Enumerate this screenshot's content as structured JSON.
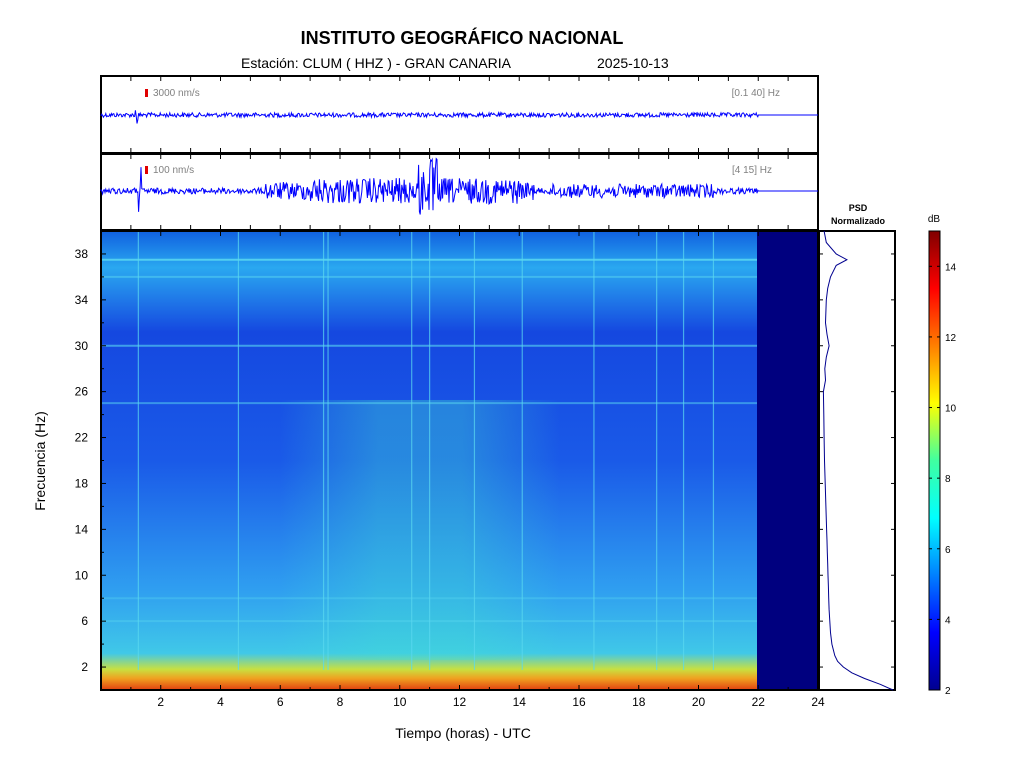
{
  "title": "INSTITUTO GEOGRÁFICO NACIONAL",
  "station_label": "Estación:  CLUM ( HHZ ) - GRAN CANARIA",
  "date": "2025-10-13",
  "trace1": {
    "amplitude_label": "3000 nm/s",
    "band_label": "[0.1 40] Hz"
  },
  "trace2": {
    "amplitude_label": "100 nm/s",
    "band_label": "[4 15] Hz"
  },
  "psd_title": [
    "PSD",
    "Normalizado"
  ],
  "colorbar": {
    "unit": "dB",
    "ticks": [
      2,
      4,
      6,
      8,
      10,
      12,
      14
    ],
    "range": [
      2,
      15
    ]
  },
  "colors": {
    "frame": "#000000",
    "trace": "#0000ff",
    "scale_marker": "#e00000",
    "no_data": "#00007f"
  },
  "chart_data": {
    "type": "heatmap",
    "xlabel": "Tiempo (horas) - UTC",
    "ylabel": "Frecuencia  (Hz)",
    "xlim": [
      0,
      24
    ],
    "ylim": [
      0,
      40
    ],
    "xticks": [
      2,
      4,
      6,
      8,
      10,
      12,
      14,
      16,
      18,
      20,
      22,
      24
    ],
    "yticks": [
      2,
      6,
      10,
      14,
      18,
      22,
      26,
      30,
      34,
      38
    ],
    "data_end_hour": 22,
    "psd_profile": {
      "freq": [
        0,
        0.5,
        1,
        1.5,
        2,
        2.5,
        3,
        4,
        5,
        6,
        7,
        8,
        9,
        10,
        11,
        12,
        13,
        14,
        16,
        18,
        20,
        22,
        24,
        26,
        27,
        28,
        29,
        30,
        31,
        32,
        34,
        35,
        36,
        37,
        37.5,
        38,
        39,
        40
      ],
      "value": [
        1.0,
        0.82,
        0.6,
        0.42,
        0.3,
        0.22,
        0.18,
        0.14,
        0.12,
        0.11,
        0.1,
        0.095,
        0.09,
        0.085,
        0.08,
        0.075,
        0.07,
        0.065,
        0.055,
        0.045,
        0.035,
        0.03,
        0.025,
        0.02,
        0.05,
        0.04,
        0.06,
        0.1,
        0.07,
        0.05,
        0.06,
        0.08,
        0.12,
        0.2,
        0.35,
        0.2,
        0.06,
        0.03
      ]
    }
  }
}
